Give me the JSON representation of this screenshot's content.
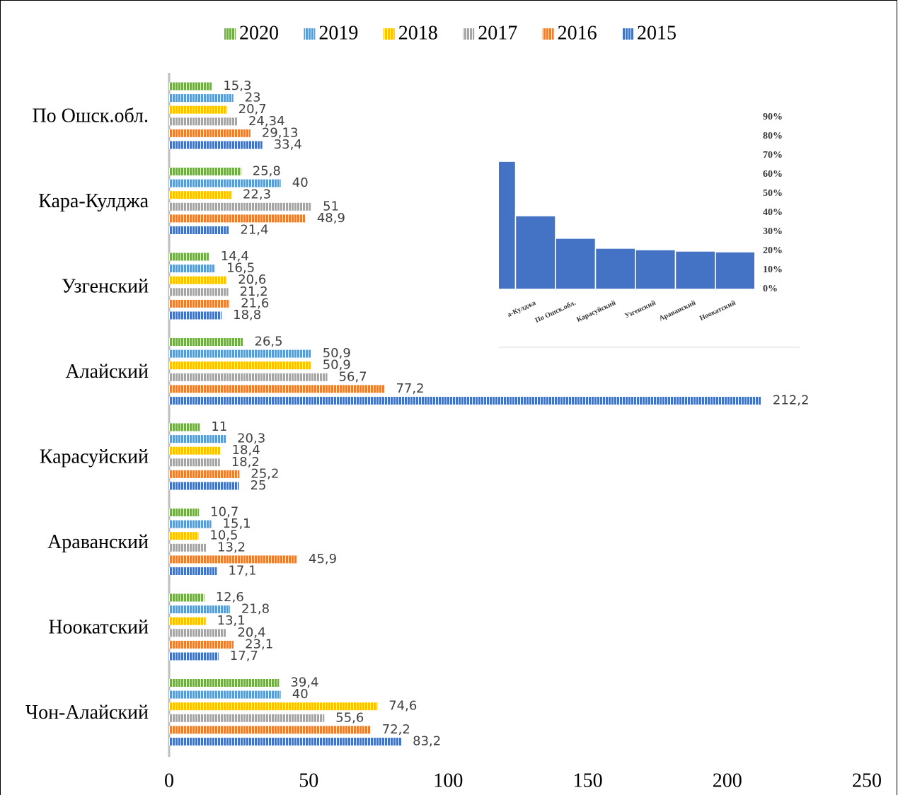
{
  "chart_data": [
    {
      "type": "bar",
      "orientation": "horizontal",
      "categories": [
        "По Ошск.обл.",
        "Кара-Кулджа",
        "Узгенский",
        "Алайский",
        "Карасуйский",
        "Араванский",
        "Ноокатский",
        "Чон-Алайский"
      ],
      "series": [
        {
          "name": "2020",
          "color": "#70ad47",
          "values": [
            15.3,
            25.8,
            14.4,
            26.5,
            11,
            10.7,
            12.6,
            39.4
          ],
          "value_labels": [
            "15,3",
            "25,8",
            "14,4",
            "26,5",
            "11",
            "10,7",
            "12,6",
            "39,4"
          ]
        },
        {
          "name": "2019",
          "color": "#5b9bd5",
          "values": [
            23,
            40,
            16.5,
            50.9,
            20.3,
            15.1,
            21.8,
            40
          ],
          "value_labels": [
            "23",
            "40",
            "16,5",
            "50,9",
            "20,3",
            "15,1",
            "21,8",
            "40"
          ]
        },
        {
          "name": "2018",
          "color": "#ffc000",
          "values": [
            20.7,
            22.3,
            20.6,
            50.9,
            18.4,
            10.5,
            13.1,
            74.6
          ],
          "value_labels": [
            "20,7",
            "22,3",
            "20,6",
            "50,9",
            "18,4",
            "10,5",
            "13,1",
            "74,6"
          ]
        },
        {
          "name": "2017",
          "color": "#a5a5a5",
          "values": [
            24.34,
            51,
            21.2,
            56.7,
            18.2,
            13.2,
            20.4,
            55.6
          ],
          "value_labels": [
            "24,34",
            "51",
            "21,2",
            "56,7",
            "18,2",
            "13,2",
            "20,4",
            "55,6"
          ]
        },
        {
          "name": "2016",
          "color": "#ed7d31",
          "values": [
            29.13,
            48.9,
            21.6,
            77.2,
            25.2,
            45.9,
            23.1,
            72.2
          ],
          "value_labels": [
            "29,13",
            "48,9",
            "21,6",
            "77,2",
            "25,2",
            "45,9",
            "23,1",
            "72,2"
          ]
        },
        {
          "name": "2015",
          "color": "#4472c4",
          "values": [
            33.4,
            21.4,
            18.8,
            212.2,
            25,
            17.1,
            17.7,
            83.2
          ],
          "value_labels": [
            "33,4",
            "21,4",
            "18,8",
            "212,2",
            "25",
            "17,1",
            "17,7",
            "83,2"
          ]
        }
      ],
      "xlim": [
        0,
        250
      ],
      "xticks": [
        0,
        50,
        100,
        150,
        200,
        250
      ],
      "grid": false,
      "legend": "top"
    },
    {
      "type": "bar",
      "orientation": "vertical",
      "categories": [
        null,
        "а-Кулджа",
        "По Ошск.обл.",
        "Карасуйский",
        "Узгенский",
        "Араванский",
        "Ноокатский"
      ],
      "values": [
        67,
        38.5,
        26.7,
        21.5,
        20.7,
        20,
        19.6
      ],
      "color": "#4472c4",
      "ylim": [
        0,
        100
      ],
      "yticks": [
        {
          "value": 0,
          "label": "0%"
        },
        {
          "value": 10,
          "label": "10%"
        },
        {
          "value": 20,
          "label": "20%"
        },
        {
          "value": 30,
          "label": "30%"
        },
        {
          "value": 40,
          "label": "40%"
        },
        {
          "value": 50,
          "label": "50%"
        },
        {
          "value": 60,
          "label": "60%"
        },
        {
          "value": 70,
          "label": "70%"
        },
        {
          "value": 80,
          "label": "80%"
        },
        {
          "value": 90,
          "label": "90%"
        }
      ],
      "grid": false
    }
  ]
}
